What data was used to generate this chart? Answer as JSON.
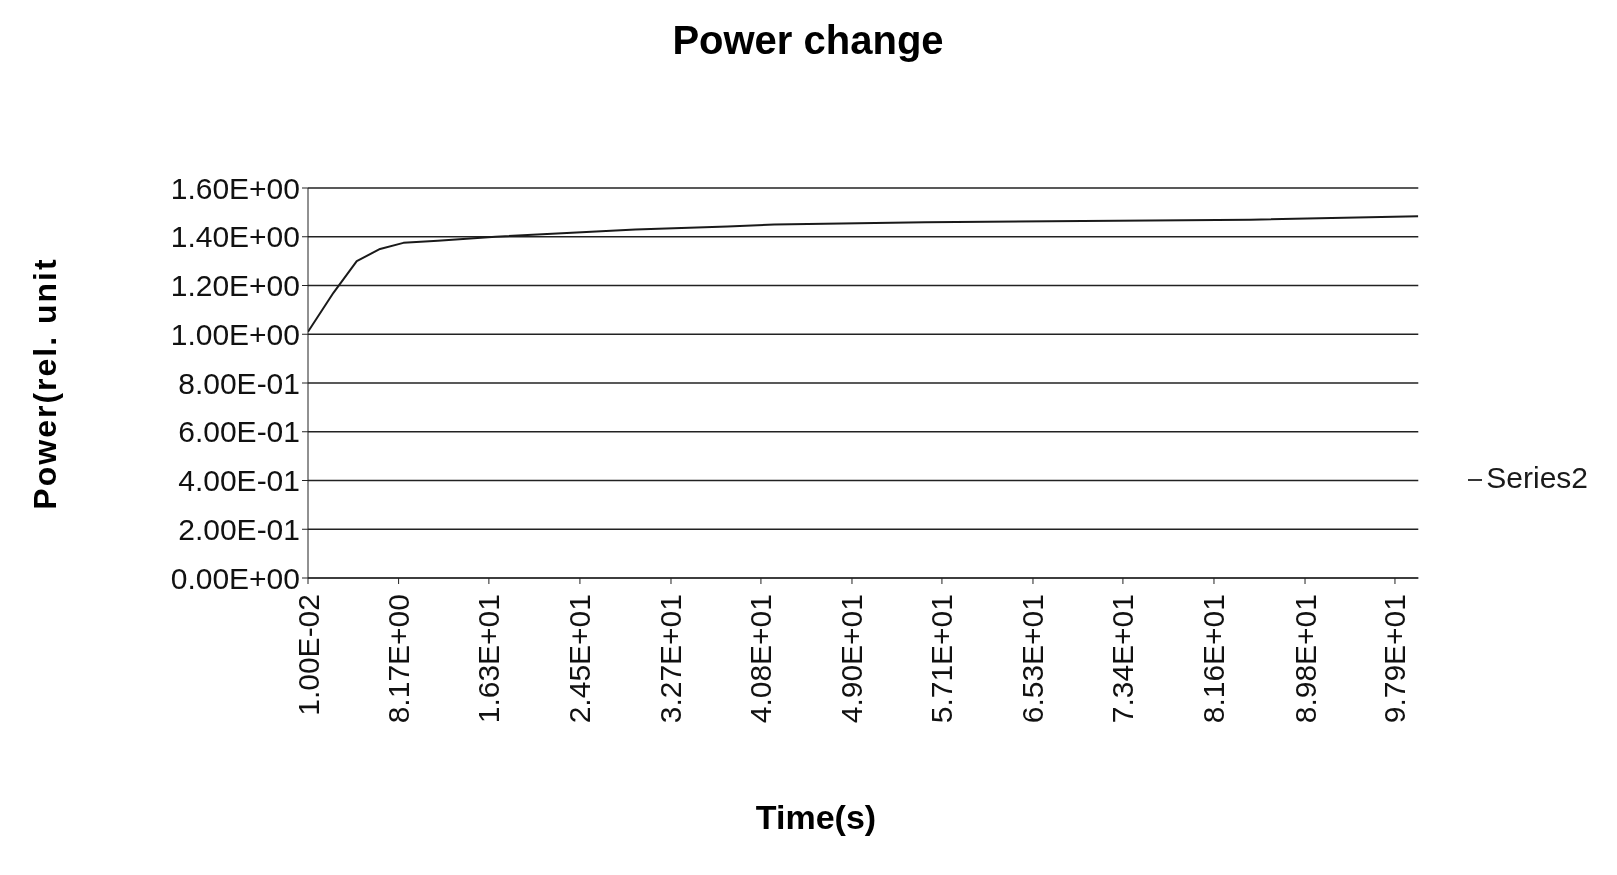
{
  "chart_data": {
    "type": "line",
    "title": "Power change",
    "xlabel": "Time(s)",
    "ylabel": "Power(rel. unit",
    "series": [
      {
        "name": "Series2",
        "color": "#1a1a1a",
        "x": [
          0.01,
          2.3,
          4.4,
          6.5,
          8.6,
          11.7,
          16.9,
          24.2,
          29.5,
          37.8,
          42,
          55.6,
          84.9,
          100
        ],
        "values": [
          1.01,
          1.17,
          1.3,
          1.35,
          1.375,
          1.384,
          1.4,
          1.417,
          1.43,
          1.442,
          1.45,
          1.459,
          1.47,
          1.484
        ]
      }
    ],
    "xlim": [
      0.01,
      100
    ],
    "xticks": [
      {
        "value": 0.01,
        "label": "1.00E-02"
      },
      {
        "value": 8.17,
        "label": "8.17E+00"
      },
      {
        "value": 16.3,
        "label": "1.63E+01"
      },
      {
        "value": 24.5,
        "label": "2.45E+01"
      },
      {
        "value": 32.7,
        "label": "3.27E+01"
      },
      {
        "value": 40.8,
        "label": "4.08E+01"
      },
      {
        "value": 49,
        "label": "4.90E+01"
      },
      {
        "value": 57.1,
        "label": "5.71E+01"
      },
      {
        "value": 65.3,
        "label": "6.53E+01"
      },
      {
        "value": 73.4,
        "label": "7.34E+01"
      },
      {
        "value": 81.6,
        "label": "8.16E+01"
      },
      {
        "value": 89.8,
        "label": "8.98E+01"
      },
      {
        "value": 97.9,
        "label": "9.79E+01"
      }
    ],
    "ylim": [
      0,
      1.6
    ],
    "yticks": [
      {
        "value": 0,
        "label": "0.00E+00"
      },
      {
        "value": 0.2,
        "label": "2.00E-01"
      },
      {
        "value": 0.4,
        "label": "4.00E-01"
      },
      {
        "value": 0.6,
        "label": "6.00E-01"
      },
      {
        "value": 0.8,
        "label": "8.00E-01"
      },
      {
        "value": 1,
        "label": "1.00E+00"
      },
      {
        "value": 1.2,
        "label": "1.20E+00"
      },
      {
        "value": 1.4,
        "label": "1.40E+00"
      },
      {
        "value": 1.6,
        "label": "1.60E+00"
      }
    ],
    "grid": "y",
    "legend": "right",
    "marker": "none",
    "line_style": "solid"
  }
}
